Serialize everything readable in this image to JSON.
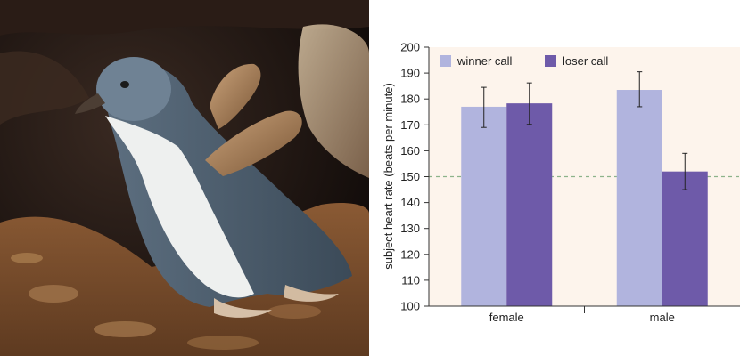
{
  "photo": {
    "subject": "little-penguin-photo"
  },
  "chart_data": {
    "type": "bar",
    "categories": [
      "female",
      "male"
    ],
    "series": [
      {
        "name": "winner call",
        "values": [
          177,
          183.5
        ],
        "error_low": [
          169,
          177
        ],
        "error_high": [
          184.5,
          190.5
        ],
        "color": "#b1b4de"
      },
      {
        "name": "loser call",
        "values": [
          178.3,
          152
        ],
        "error_low": [
          170.2,
          145
        ],
        "error_high": [
          186.2,
          159
        ],
        "color": "#6e5aa9"
      }
    ],
    "ylabel": "subject heart rate (beats per minute)",
    "xlabel": "",
    "ylim": [
      100,
      200
    ],
    "yticks": [
      100,
      110,
      120,
      130,
      140,
      150,
      160,
      170,
      180,
      190,
      200
    ],
    "reference_line": {
      "value": 150,
      "style": "dashed",
      "color": "#8db38a"
    },
    "plot_background": "#fdf4ec",
    "legend_position": "top"
  }
}
